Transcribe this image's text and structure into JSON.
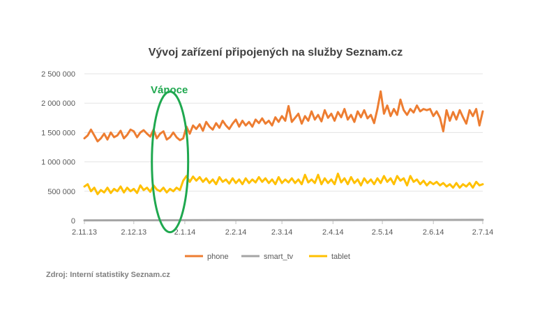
{
  "chart_data": {
    "type": "line",
    "title": "Vývoj zařízení připojených na služby Seznam.cz",
    "ylim": [
      0,
      2500000
    ],
    "y_ticks": [
      0,
      500000,
      1000000,
      1500000,
      2000000,
      2500000
    ],
    "y_tick_labels": [
      "0",
      "500 000",
      "1 000 000",
      "1 500 000",
      "2 000 000",
      "2 500 000"
    ],
    "x_range_days": [
      0,
      242
    ],
    "x_ticks": [
      {
        "day": 0,
        "label": "2.11.13"
      },
      {
        "day": 30,
        "label": "2.12.13"
      },
      {
        "day": 61,
        "label": "2.1.14"
      },
      {
        "day": 92,
        "label": "2.2.14"
      },
      {
        "day": 120,
        "label": "2.3.14"
      },
      {
        "day": 151,
        "label": "2.4.14"
      },
      {
        "day": 181,
        "label": "2.5.14"
      },
      {
        "day": 212,
        "label": "2.6.14"
      },
      {
        "day": 242,
        "label": "2.7.14"
      }
    ],
    "series": [
      {
        "name": "phone",
        "color": "#ed7d31",
        "points": [
          [
            0,
            1400000
          ],
          [
            2,
            1450000
          ],
          [
            4,
            1550000
          ],
          [
            6,
            1450000
          ],
          [
            8,
            1350000
          ],
          [
            10,
            1400000
          ],
          [
            12,
            1480000
          ],
          [
            14,
            1380000
          ],
          [
            16,
            1500000
          ],
          [
            18,
            1420000
          ],
          [
            20,
            1450000
          ],
          [
            22,
            1530000
          ],
          [
            24,
            1400000
          ],
          [
            26,
            1460000
          ],
          [
            28,
            1550000
          ],
          [
            30,
            1520000
          ],
          [
            32,
            1420000
          ],
          [
            34,
            1500000
          ],
          [
            36,
            1540000
          ],
          [
            38,
            1480000
          ],
          [
            40,
            1430000
          ],
          [
            42,
            1550000
          ],
          [
            44,
            1400000
          ],
          [
            46,
            1480000
          ],
          [
            48,
            1520000
          ],
          [
            50,
            1380000
          ],
          [
            52,
            1420000
          ],
          [
            54,
            1500000
          ],
          [
            56,
            1420000
          ],
          [
            58,
            1370000
          ],
          [
            60,
            1400000
          ],
          [
            62,
            1600000
          ],
          [
            64,
            1480000
          ],
          [
            66,
            1620000
          ],
          [
            68,
            1560000
          ],
          [
            70,
            1640000
          ],
          [
            72,
            1530000
          ],
          [
            74,
            1680000
          ],
          [
            76,
            1600000
          ],
          [
            78,
            1550000
          ],
          [
            80,
            1660000
          ],
          [
            82,
            1580000
          ],
          [
            84,
            1700000
          ],
          [
            86,
            1620000
          ],
          [
            88,
            1560000
          ],
          [
            90,
            1650000
          ],
          [
            92,
            1720000
          ],
          [
            94,
            1600000
          ],
          [
            96,
            1700000
          ],
          [
            98,
            1620000
          ],
          [
            100,
            1680000
          ],
          [
            102,
            1600000
          ],
          [
            104,
            1720000
          ],
          [
            106,
            1660000
          ],
          [
            108,
            1740000
          ],
          [
            110,
            1650000
          ],
          [
            112,
            1700000
          ],
          [
            114,
            1620000
          ],
          [
            116,
            1760000
          ],
          [
            118,
            1680000
          ],
          [
            120,
            1780000
          ],
          [
            122,
            1700000
          ],
          [
            124,
            1950000
          ],
          [
            126,
            1680000
          ],
          [
            128,
            1750000
          ],
          [
            130,
            1820000
          ],
          [
            132,
            1650000
          ],
          [
            134,
            1780000
          ],
          [
            136,
            1700000
          ],
          [
            138,
            1860000
          ],
          [
            140,
            1720000
          ],
          [
            142,
            1800000
          ],
          [
            144,
            1690000
          ],
          [
            146,
            1880000
          ],
          [
            148,
            1750000
          ],
          [
            150,
            1820000
          ],
          [
            152,
            1700000
          ],
          [
            154,
            1850000
          ],
          [
            156,
            1760000
          ],
          [
            158,
            1900000
          ],
          [
            160,
            1720000
          ],
          [
            162,
            1800000
          ],
          [
            164,
            1680000
          ],
          [
            166,
            1860000
          ],
          [
            168,
            1760000
          ],
          [
            170,
            1880000
          ],
          [
            172,
            1740000
          ],
          [
            174,
            1800000
          ],
          [
            176,
            1660000
          ],
          [
            178,
            1900000
          ],
          [
            180,
            2200000
          ],
          [
            182,
            1820000
          ],
          [
            184,
            1960000
          ],
          [
            186,
            1780000
          ],
          [
            188,
            1900000
          ],
          [
            190,
            1800000
          ],
          [
            192,
            2060000
          ],
          [
            194,
            1880000
          ],
          [
            196,
            1800000
          ],
          [
            198,
            1900000
          ],
          [
            200,
            1840000
          ],
          [
            202,
            1960000
          ],
          [
            204,
            1860000
          ],
          [
            206,
            1900000
          ],
          [
            208,
            1880000
          ],
          [
            210,
            1900000
          ],
          [
            212,
            1780000
          ],
          [
            214,
            1860000
          ],
          [
            216,
            1750000
          ],
          [
            218,
            1520000
          ],
          [
            220,
            1880000
          ],
          [
            222,
            1700000
          ],
          [
            224,
            1850000
          ],
          [
            226,
            1720000
          ],
          [
            228,
            1880000
          ],
          [
            230,
            1760000
          ],
          [
            232,
            1650000
          ],
          [
            234,
            1880000
          ],
          [
            236,
            1780000
          ],
          [
            238,
            1900000
          ],
          [
            240,
            1620000
          ],
          [
            242,
            1860000
          ]
        ]
      },
      {
        "name": "smart_tv",
        "color": "#a5a5a5",
        "points": [
          [
            0,
            5000
          ],
          [
            40,
            6000
          ],
          [
            80,
            8000
          ],
          [
            120,
            9000
          ],
          [
            160,
            11000
          ],
          [
            200,
            12000
          ],
          [
            242,
            13000
          ]
        ]
      },
      {
        "name": "tablet",
        "color": "#ffc000",
        "points": [
          [
            0,
            580000
          ],
          [
            2,
            620000
          ],
          [
            4,
            500000
          ],
          [
            6,
            560000
          ],
          [
            8,
            450000
          ],
          [
            10,
            520000
          ],
          [
            12,
            480000
          ],
          [
            14,
            560000
          ],
          [
            16,
            470000
          ],
          [
            18,
            540000
          ],
          [
            20,
            500000
          ],
          [
            22,
            580000
          ],
          [
            24,
            480000
          ],
          [
            26,
            560000
          ],
          [
            28,
            500000
          ],
          [
            30,
            540000
          ],
          [
            32,
            470000
          ],
          [
            34,
            600000
          ],
          [
            36,
            520000
          ],
          [
            38,
            560000
          ],
          [
            40,
            490000
          ],
          [
            42,
            600000
          ],
          [
            44,
            530000
          ],
          [
            46,
            500000
          ],
          [
            48,
            560000
          ],
          [
            50,
            480000
          ],
          [
            52,
            540000
          ],
          [
            54,
            500000
          ],
          [
            56,
            560000
          ],
          [
            58,
            520000
          ],
          [
            60,
            680000
          ],
          [
            62,
            760000
          ],
          [
            64,
            660000
          ],
          [
            66,
            750000
          ],
          [
            68,
            680000
          ],
          [
            70,
            740000
          ],
          [
            72,
            660000
          ],
          [
            74,
            720000
          ],
          [
            76,
            640000
          ],
          [
            78,
            700000
          ],
          [
            80,
            620000
          ],
          [
            82,
            740000
          ],
          [
            84,
            660000
          ],
          [
            86,
            700000
          ],
          [
            88,
            630000
          ],
          [
            90,
            720000
          ],
          [
            92,
            640000
          ],
          [
            94,
            700000
          ],
          [
            96,
            620000
          ],
          [
            98,
            720000
          ],
          [
            100,
            640000
          ],
          [
            102,
            700000
          ],
          [
            104,
            650000
          ],
          [
            106,
            740000
          ],
          [
            108,
            660000
          ],
          [
            110,
            720000
          ],
          [
            112,
            640000
          ],
          [
            114,
            700000
          ],
          [
            116,
            620000
          ],
          [
            118,
            740000
          ],
          [
            120,
            640000
          ],
          [
            122,
            700000
          ],
          [
            124,
            650000
          ],
          [
            126,
            720000
          ],
          [
            128,
            640000
          ],
          [
            130,
            700000
          ],
          [
            132,
            620000
          ],
          [
            134,
            780000
          ],
          [
            136,
            650000
          ],
          [
            138,
            700000
          ],
          [
            140,
            640000
          ],
          [
            142,
            780000
          ],
          [
            144,
            620000
          ],
          [
            146,
            720000
          ],
          [
            148,
            640000
          ],
          [
            150,
            700000
          ],
          [
            152,
            620000
          ],
          [
            154,
            800000
          ],
          [
            156,
            650000
          ],
          [
            158,
            720000
          ],
          [
            160,
            620000
          ],
          [
            162,
            740000
          ],
          [
            164,
            640000
          ],
          [
            166,
            700000
          ],
          [
            168,
            600000
          ],
          [
            170,
            720000
          ],
          [
            172,
            640000
          ],
          [
            174,
            700000
          ],
          [
            176,
            620000
          ],
          [
            178,
            720000
          ],
          [
            180,
            640000
          ],
          [
            182,
            760000
          ],
          [
            184,
            660000
          ],
          [
            186,
            720000
          ],
          [
            188,
            620000
          ],
          [
            190,
            760000
          ],
          [
            192,
            680000
          ],
          [
            194,
            720000
          ],
          [
            196,
            600000
          ],
          [
            198,
            760000
          ],
          [
            200,
            660000
          ],
          [
            202,
            700000
          ],
          [
            204,
            620000
          ],
          [
            206,
            680000
          ],
          [
            208,
            600000
          ],
          [
            210,
            660000
          ],
          [
            212,
            620000
          ],
          [
            214,
            660000
          ],
          [
            216,
            600000
          ],
          [
            218,
            640000
          ],
          [
            220,
            580000
          ],
          [
            222,
            620000
          ],
          [
            224,
            560000
          ],
          [
            226,
            640000
          ],
          [
            228,
            560000
          ],
          [
            230,
            620000
          ],
          [
            232,
            580000
          ],
          [
            234,
            640000
          ],
          [
            236,
            560000
          ],
          [
            238,
            660000
          ],
          [
            240,
            600000
          ],
          [
            242,
            620000
          ]
        ]
      }
    ],
    "annotations": [
      {
        "text": "Vánoce",
        "color": "#1fa84f",
        "shape": "ellipse",
        "center_day": 52,
        "center_value": 1000000
      }
    ],
    "legend": {
      "position": "bottom",
      "items": [
        "phone",
        "smart_tv",
        "tablet"
      ]
    },
    "gridlines": true
  },
  "source_note": "Zdroj: Interní statistiky Seznam.cz"
}
